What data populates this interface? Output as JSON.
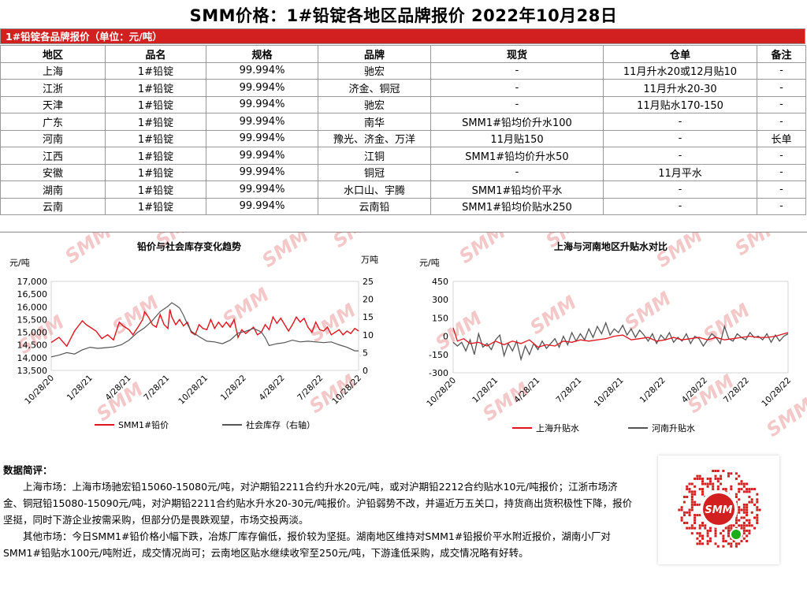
{
  "title": "SMM价格：1#铅锭各地区品牌报价  2022年10月28日",
  "table_caption": "1#铅锭各品牌报价（单位：元/吨）",
  "table": {
    "headers": [
      "地区",
      "品名",
      "规格",
      "品牌",
      "现货",
      "仓单",
      "备注"
    ],
    "rows": [
      [
        "上海",
        "1#铅锭",
        "99.994%",
        "驰宏",
        "-",
        "11月升水20或12月贴10",
        "-"
      ],
      [
        "江浙",
        "1#铅锭",
        "99.994%",
        "济金、铜冠",
        "-",
        "11月升水20-30",
        "-"
      ],
      [
        "天津",
        "1#铅锭",
        "99.994%",
        "驰宏",
        "-",
        "11月贴水170-150",
        "-"
      ],
      [
        "广东",
        "1#铅锭",
        "99.994%",
        "南华",
        "SMM1#铅均价升水100",
        "-",
        "-"
      ],
      [
        "河南",
        "1#铅锭",
        "99.994%",
        "豫光、济金、万洋",
        "11月贴150",
        "-",
        "长单"
      ],
      [
        "江西",
        "1#铅锭",
        "99.994%",
        "江铜",
        "SMM1#铅均价升水50",
        "-",
        "-"
      ],
      [
        "安徽",
        "1#铅锭",
        "99.994%",
        "铜冠",
        "-",
        "11月平水",
        "-"
      ],
      [
        "湖南",
        "1#铅锭",
        "99.994%",
        "水口山、宇腾",
        "SMM1#铅均价平水",
        "-",
        "-"
      ],
      [
        "云南",
        "1#铅锭",
        "99.994%",
        "云南铅",
        "SMM1#铅均价贴水250",
        "-",
        "-"
      ]
    ]
  },
  "chart_data": [
    {
      "type": "line",
      "title": "铅价与社会库存变化趋势",
      "ylabel": "元/吨",
      "y2label": "万吨",
      "ylim": [
        13500,
        17000
      ],
      "y2lim": [
        0,
        25
      ],
      "yticks": [
        "17,000",
        "16,500",
        "16,000",
        "15,500",
        "15,000",
        "14,500",
        "14,000",
        "13,500"
      ],
      "y2ticks": [
        "25",
        "20",
        "15",
        "10",
        "5",
        "0"
      ],
      "x_ticks": [
        "10/28/20",
        "1/28/21",
        "4/28/21",
        "7/28/21",
        "10/28/21",
        "1/28/22",
        "4/28/22",
        "7/28/22",
        "10/28/22"
      ],
      "legend_position": "bottom",
      "series": [
        {
          "name": "SMM1#铅价",
          "axis": "left",
          "color": "#e0141e",
          "points": [
            [
              0,
              14600
            ],
            [
              4,
              14800
            ],
            [
              8,
              14450
            ],
            [
              12,
              15050
            ],
            [
              16,
              15450
            ],
            [
              18,
              15300
            ],
            [
              20,
              15200
            ],
            [
              23,
              15050
            ],
            [
              26,
              14750
            ],
            [
              29,
              14900
            ],
            [
              32,
              14700
            ],
            [
              35,
              15400
            ],
            [
              37,
              15250
            ],
            [
              40,
              15100
            ],
            [
              42,
              14900
            ],
            [
              45,
              15250
            ],
            [
              47,
              15500
            ],
            [
              48,
              15800
            ],
            [
              50,
              15600
            ],
            [
              52,
              15300
            ],
            [
              54,
              15200
            ],
            [
              56,
              15700
            ],
            [
              58,
              15300
            ],
            [
              60,
              15150
            ],
            [
              61,
              15900
            ],
            [
              62,
              15600
            ],
            [
              64,
              15300
            ],
            [
              66,
              15500
            ],
            [
              68,
              15250
            ],
            [
              70,
              15400
            ],
            [
              72,
              15000
            ],
            [
              74,
              14900
            ],
            [
              76,
              15300
            ],
            [
              78,
              15150
            ],
            [
              80,
              15100
            ],
            [
              82,
              15500
            ],
            [
              84,
              15150
            ],
            [
              86,
              15400
            ],
            [
              88,
              15200
            ],
            [
              90,
              15400
            ],
            [
              92,
              15200
            ],
            [
              94,
              15500
            ],
            [
              96,
              14800
            ],
            [
              98,
              15100
            ],
            [
              100,
              14950
            ],
            [
              104,
              15200
            ],
            [
              106,
              14900
            ],
            [
              108,
              15000
            ],
            [
              110,
              15300
            ],
            [
              112,
              15100
            ],
            [
              114,
              15600
            ],
            [
              116,
              15350
            ],
            [
              118,
              15550
            ],
            [
              120,
              15300
            ],
            [
              122,
              15050
            ],
            [
              124,
              15300
            ],
            [
              126,
              15600
            ],
            [
              128,
              15400
            ],
            [
              130,
              15550
            ],
            [
              132,
              15200
            ],
            [
              134,
              15000
            ],
            [
              136,
              15400
            ],
            [
              138,
              15100
            ],
            [
              140,
              15050
            ],
            [
              142,
              15200
            ],
            [
              144,
              14900
            ],
            [
              146,
              15000
            ],
            [
              148,
              15100
            ],
            [
              150,
              14900
            ],
            [
              152,
              15050
            ],
            [
              154,
              14950
            ],
            [
              156,
              15150
            ],
            [
              158,
              15050
            ]
          ]
        },
        {
          "name": "社会库存（右轴）",
          "axis": "right",
          "color": "#555555",
          "points": [
            [
              0,
              3.8
            ],
            [
              4,
              4.3
            ],
            [
              8,
              5.0
            ],
            [
              12,
              4.6
            ],
            [
              16,
              5.8
            ],
            [
              20,
              6.5
            ],
            [
              24,
              6.2
            ],
            [
              28,
              6.4
            ],
            [
              32,
              6.6
            ],
            [
              36,
              7.2
            ],
            [
              40,
              8.5
            ],
            [
              44,
              10.5
            ],
            [
              48,
              12.0
            ],
            [
              52,
              14.0
            ],
            [
              56,
              16.5
            ],
            [
              60,
              18.0
            ],
            [
              62,
              19.0
            ],
            [
              64,
              18.3
            ],
            [
              66,
              17.5
            ],
            [
              68,
              15.5
            ],
            [
              70,
              13.0
            ],
            [
              72,
              11.0
            ],
            [
              76,
              9.5
            ],
            [
              80,
              8.2
            ],
            [
              84,
              8.0
            ],
            [
              88,
              7.5
            ],
            [
              92,
              8.5
            ],
            [
              96,
              10.5
            ],
            [
              100,
              11.0
            ],
            [
              104,
              11.8
            ],
            [
              108,
              10.8
            ],
            [
              110,
              9.2
            ],
            [
              112,
              7.0
            ],
            [
              116,
              7.5
            ],
            [
              120,
              7.8
            ],
            [
              124,
              8.5
            ],
            [
              128,
              8.0
            ],
            [
              132,
              8.2
            ],
            [
              136,
              8.0
            ],
            [
              140,
              7.8
            ],
            [
              144,
              8.0
            ],
            [
              148,
              7.2
            ],
            [
              152,
              6.5
            ],
            [
              156,
              5.5
            ],
            [
              158,
              5.5
            ]
          ]
        }
      ]
    },
    {
      "type": "line",
      "title": "上海与河南地区升贴水对比",
      "ylabel": "元/吨",
      "ylim": [
        -300,
        450
      ],
      "yticks": [
        "450",
        "300",
        "150",
        "0",
        "-150",
        "-300"
      ],
      "x_ticks": [
        "10/28/20",
        "1/28/21",
        "4/28/21",
        "7/28/21",
        "10/28/21",
        "1/28/22",
        "4/28/22",
        "7/28/22",
        "10/28/22"
      ],
      "legend_position": "bottom",
      "series": [
        {
          "name": "上海升贴水",
          "color": "#e0141e",
          "points": [
            [
              0,
              70
            ],
            [
              2,
              -40
            ],
            [
              5,
              -20
            ],
            [
              8,
              -60
            ],
            [
              12,
              -50
            ],
            [
              16,
              -80
            ],
            [
              20,
              -40
            ],
            [
              24,
              -70
            ],
            [
              28,
              -40
            ],
            [
              32,
              -60
            ],
            [
              36,
              -30
            ],
            [
              40,
              -90
            ],
            [
              44,
              -70
            ],
            [
              48,
              -80
            ],
            [
              52,
              -40
            ],
            [
              56,
              -50
            ],
            [
              60,
              -30
            ],
            [
              64,
              -40
            ],
            [
              68,
              -30
            ],
            [
              72,
              -20
            ],
            [
              76,
              0
            ],
            [
              80,
              10
            ],
            [
              84,
              -30
            ],
            [
              88,
              -20
            ],
            [
              92,
              -10
            ],
            [
              96,
              -40
            ],
            [
              100,
              -30
            ],
            [
              104,
              -10
            ],
            [
              108,
              -30
            ],
            [
              112,
              -20
            ],
            [
              116,
              -10
            ],
            [
              120,
              -30
            ],
            [
              124,
              -10
            ],
            [
              128,
              -30
            ],
            [
              132,
              -20
            ],
            [
              136,
              -10
            ],
            [
              140,
              0
            ],
            [
              144,
              -10
            ],
            [
              148,
              -10
            ],
            [
              152,
              0
            ],
            [
              156,
              20
            ],
            [
              158,
              30
            ]
          ]
        },
        {
          "name": "河南升贴水",
          "color": "#555555",
          "points": [
            [
              0,
              -50
            ],
            [
              2,
              -80
            ],
            [
              4,
              -50
            ],
            [
              6,
              -120
            ],
            [
              8,
              -30
            ],
            [
              10,
              -150
            ],
            [
              12,
              20
            ],
            [
              14,
              -90
            ],
            [
              16,
              -60
            ],
            [
              18,
              -110
            ],
            [
              20,
              -30
            ],
            [
              22,
              10
            ],
            [
              24,
              -160
            ],
            [
              26,
              -60
            ],
            [
              28,
              -120
            ],
            [
              30,
              -40
            ],
            [
              32,
              -190
            ],
            [
              34,
              -80
            ],
            [
              36,
              -150
            ],
            [
              38,
              -60
            ],
            [
              40,
              -110
            ],
            [
              42,
              -40
            ],
            [
              44,
              -100
            ],
            [
              46,
              -60
            ],
            [
              48,
              -20
            ],
            [
              50,
              -90
            ],
            [
              52,
              0
            ],
            [
              54,
              -70
            ],
            [
              56,
              30
            ],
            [
              58,
              -40
            ],
            [
              60,
              20
            ],
            [
              62,
              -30
            ],
            [
              64,
              60
            ],
            [
              66,
              -10
            ],
            [
              68,
              80
            ],
            [
              70,
              20
            ],
            [
              72,
              110
            ],
            [
              74,
              10
            ],
            [
              76,
              60
            ],
            [
              78,
              30
            ],
            [
              80,
              90
            ],
            [
              82,
              10
            ],
            [
              84,
              60
            ],
            [
              86,
              -10
            ],
            [
              88,
              50
            ],
            [
              90,
              10
            ],
            [
              92,
              -40
            ],
            [
              94,
              20
            ],
            [
              96,
              -60
            ],
            [
              98,
              10
            ],
            [
              100,
              -30
            ],
            [
              102,
              30
            ],
            [
              104,
              -50
            ],
            [
              106,
              -10
            ],
            [
              108,
              -40
            ],
            [
              110,
              20
            ],
            [
              112,
              -60
            ],
            [
              114,
              0
            ],
            [
              116,
              -20
            ],
            [
              118,
              -80
            ],
            [
              120,
              -30
            ],
            [
              122,
              20
            ],
            [
              124,
              -10
            ],
            [
              126,
              -60
            ],
            [
              128,
              80
            ],
            [
              130,
              -20
            ],
            [
              132,
              -40
            ],
            [
              134,
              20
            ],
            [
              136,
              -10
            ],
            [
              138,
              -30
            ],
            [
              140,
              30
            ],
            [
              142,
              -10
            ],
            [
              144,
              0
            ],
            [
              146,
              -30
            ],
            [
              148,
              20
            ],
            [
              150,
              -50
            ],
            [
              152,
              10
            ],
            [
              154,
              -40
            ],
            [
              156,
              0
            ],
            [
              158,
              20
            ]
          ]
        }
      ]
    }
  ],
  "summary": {
    "heading": "数据简评：",
    "paragraphs": [
      "上海市场：上海市场驰宏铅15060-15080元/吨，对沪期铅2211合约升水20元/吨，或对沪期铅2212合约贴水10元/吨报价；江浙市场济金、铜冠铅15080-15090元/吨，对沪期铅2211合约贴水升水20-30元/吨报价。沪铅弱势不改，并逼近万五关口，持货商出货积极性下降，报价坚挺，同时下游企业按需采购，但部分仍是畏跌观望，市场交投两淡。",
      "其他市场：今日SMM1#铅价格小幅下跌，冶炼厂库存偏低，报价较为坚挺。湖南地区维持对SMM1#铅报价平水附近报价，湖南小厂对SMM1#铅贴水100元/吨附近，成交情况尚可；云南地区贴水继续收窄至250元/吨，下游逢低采购，成交情况略有好转。"
    ]
  },
  "watermark": "SMM",
  "qr": {
    "logo_text": "SMM"
  }
}
